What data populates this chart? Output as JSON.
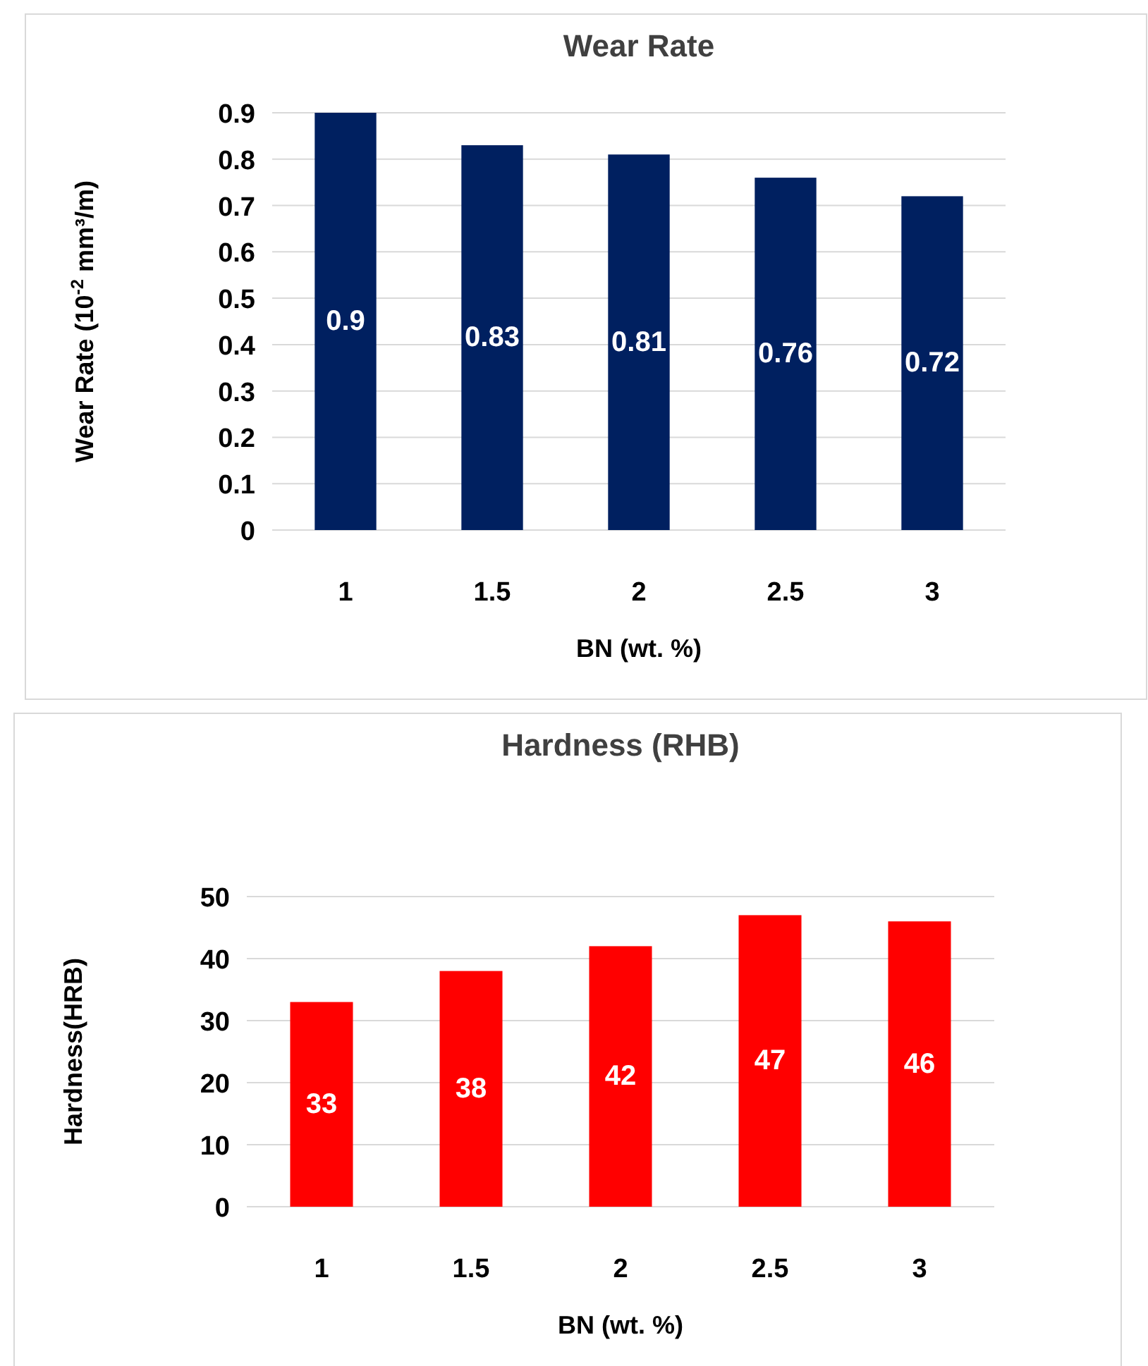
{
  "chart_data": [
    {
      "type": "bar",
      "title": "Wear Rate",
      "xlabel": "BN (wt. %)",
      "ylabel": "Wear Rate (10$^{-2}$ mm³/m)",
      "categories": [
        "1",
        "1.5",
        "2",
        "2.5",
        "3"
      ],
      "values": [
        0.9,
        0.83,
        0.81,
        0.76,
        0.72
      ],
      "color": "#002060",
      "ylim": [
        0,
        0.9
      ],
      "yticks": [
        0,
        0.1,
        0.2,
        0.3,
        0.4,
        0.5,
        0.6,
        0.7,
        0.8,
        0.9
      ],
      "grid": "y",
      "data_labels": true
    },
    {
      "type": "bar",
      "title": "Hardness (RHB)",
      "xlabel": "BN (wt. %)",
      "ylabel": "Hardness(HRB)",
      "categories": [
        "1",
        "1.5",
        "2",
        "2.5",
        "3"
      ],
      "values": [
        33,
        38,
        42,
        47,
        46
      ],
      "color": "#ff0000",
      "ylim": [
        0,
        50
      ],
      "yticks": [
        0,
        10,
        20,
        30,
        40,
        50
      ],
      "grid": "y",
      "data_labels": true
    }
  ]
}
